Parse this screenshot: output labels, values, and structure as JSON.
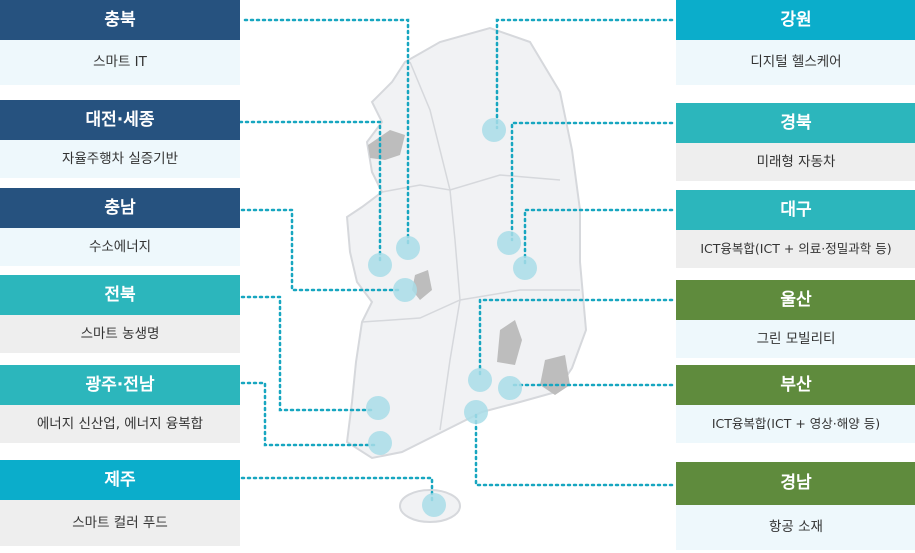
{
  "colors": {
    "navy": "#26527f",
    "teal": "#2cb6bc",
    "cyan": "#0badcb",
    "green": "#5f8b3d",
    "line": "#17a6c0",
    "marker": "#a9dde8"
  },
  "left": [
    {
      "region": "충북",
      "industry": "스마트 IT"
    },
    {
      "region": "대전·세종",
      "industry": "자율주행차 실증기반"
    },
    {
      "region": "충남",
      "industry": "수소에너지"
    },
    {
      "region": "전북",
      "industry": "스마트 농생명"
    },
    {
      "region": "광주·전남",
      "industry": "에너지 신산업, 에너지 융복합"
    },
    {
      "region": "제주",
      "industry": "스마트 컬러 푸드"
    }
  ],
  "right": [
    {
      "region": "강원",
      "industry": "디지털 헬스케어"
    },
    {
      "region": "경북",
      "industry": "미래형 자동차"
    },
    {
      "region": "대구",
      "industry": "ICT융복합(ICT + 의료·정밀과학 등)"
    },
    {
      "region": "울산",
      "industry": "그린 모빌리티"
    },
    {
      "region": "부산",
      "industry": "ICT융복합(ICT + 영상·해양 등)"
    },
    {
      "region": "경남",
      "industry": "항공 소재"
    }
  ]
}
